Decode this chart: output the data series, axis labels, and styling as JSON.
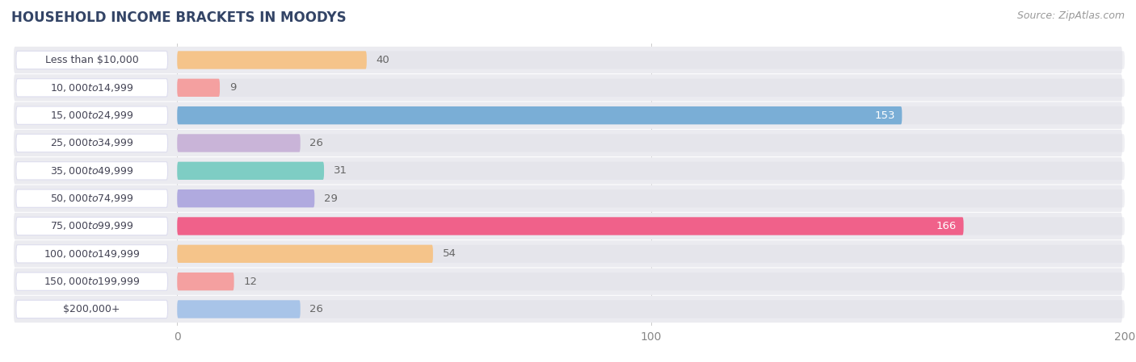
{
  "title": "HOUSEHOLD INCOME BRACKETS IN MOODYS",
  "source": "Source: ZipAtlas.com",
  "categories": [
    "Less than $10,000",
    "$10,000 to $14,999",
    "$15,000 to $24,999",
    "$25,000 to $34,999",
    "$35,000 to $49,999",
    "$50,000 to $74,999",
    "$75,000 to $99,999",
    "$100,000 to $149,999",
    "$150,000 to $199,999",
    "$200,000+"
  ],
  "values": [
    40,
    9,
    153,
    26,
    31,
    29,
    166,
    54,
    12,
    26
  ],
  "colors": [
    "#f5c48a",
    "#f4a0a0",
    "#7aaed6",
    "#c9b4d8",
    "#7ecdc4",
    "#b0aadf",
    "#f0618a",
    "#f5c48a",
    "#f4a0a0",
    "#a8c4e8"
  ],
  "xlim": [
    -35,
    200
  ],
  "data_xlim": [
    0,
    200
  ],
  "xticks": [
    0,
    100,
    200
  ],
  "background_color": "#ffffff",
  "row_bg_color": "#f0f0f4",
  "row_bg_alt": "#e8e8f0",
  "label_pill_color": "#ffffff",
  "label_text_color": "#444455",
  "value_inside_color": "#ffffff",
  "value_outside_color": "#666666",
  "title_color": "#334466",
  "source_color": "#999999",
  "title_fontsize": 12,
  "source_fontsize": 9,
  "tick_fontsize": 10,
  "value_fontsize": 9.5,
  "cat_fontsize": 9.0,
  "bar_height": 0.65,
  "threshold_inside": 130
}
